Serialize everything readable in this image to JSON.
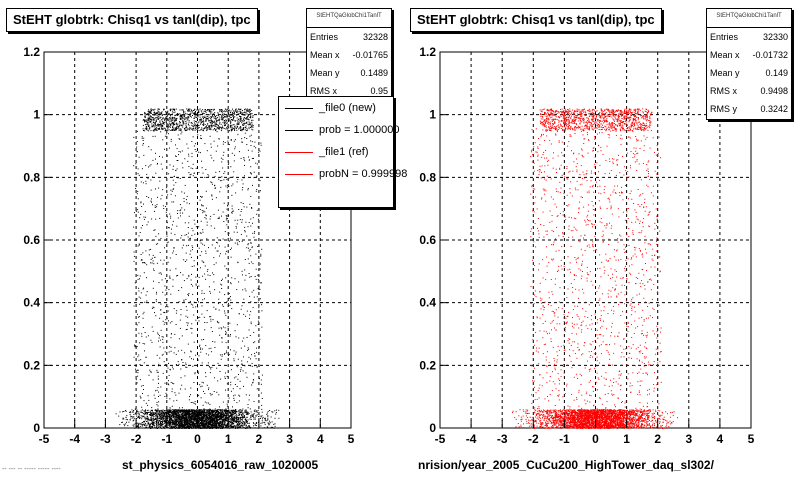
{
  "chart_data": [
    {
      "type": "scatter",
      "title": "StEHT globtrk: Chisq1 vs tanl(dip), tpc",
      "xlabel": "st_physics_6054016_raw_1020005",
      "ylabel": "",
      "xlim": [
        -5,
        5
      ],
      "ylim": [
        0,
        1.2
      ],
      "x_ticks": [
        "-5",
        "-4",
        "-3",
        "-2",
        "-1",
        "0",
        "1",
        "2",
        "3",
        "4",
        "5"
      ],
      "y_ticks": [
        "0",
        "0.2",
        "0.4",
        "0.6",
        "0.8",
        "1",
        "1.2"
      ],
      "grid": true,
      "point_color": "#000000",
      "stats": {
        "name": "StEHTQaGlobChi1TanlT",
        "rows": [
          {
            "label": "Entries",
            "value": "32328"
          },
          {
            "label": "Mean x",
            "value": "-0.01765"
          },
          {
            "label": "Mean y",
            "value": "0.1489"
          },
          {
            "label": "RMS x",
            "value": "0.95"
          }
        ]
      },
      "legend": {
        "placement": "top-right",
        "entries": [
          {
            "label": "_file0 (new)",
            "color": "#000000"
          },
          {
            "label": "prob = 1.000000",
            "color": "#000000"
          },
          {
            "label": "_file1 (ref)",
            "color": "#ff0000"
          },
          {
            "label": "probN = 0.999998",
            "color": "#ff0000"
          }
        ]
      },
      "distribution": {
        "peak_band_y": [
          0,
          0.06
        ],
        "upper_band_y": [
          0.95,
          1.02
        ],
        "x_range": [
          -2.7,
          2.7
        ],
        "mean_x": -0.01765,
        "rms_x": 0.95
      }
    },
    {
      "type": "scatter",
      "title": "StEHT globtrk: Chisq1 vs tanl(dip), tpc",
      "xlabel": "nrision/year_2005_CuCu200_HighTower_daq_sl302/",
      "ylabel": "",
      "xlim": [
        -5,
        5
      ],
      "ylim": [
        0,
        1.2
      ],
      "x_ticks": [
        "-5",
        "-4",
        "-3",
        "-2",
        "-1",
        "0",
        "1",
        "2",
        "3",
        "4",
        "5"
      ],
      "y_ticks": [
        "0",
        "0.2",
        "0.4",
        "0.6",
        "0.8",
        "1",
        "1.2"
      ],
      "grid": true,
      "point_color": "#ff0000",
      "stats": {
        "name": "StEHTQaGlobChi1TanlT",
        "rows": [
          {
            "label": "Entries",
            "value": "32330"
          },
          {
            "label": "Mean x",
            "value": "-0.01732"
          },
          {
            "label": "Mean y",
            "value": "0.149"
          },
          {
            "label": "RMS x",
            "value": "0.9498"
          },
          {
            "label": "RMS y",
            "value": "0.3242"
          }
        ]
      },
      "distribution": {
        "peak_band_y": [
          0,
          0.06
        ],
        "upper_band_y": [
          0.95,
          1.02
        ],
        "x_range": [
          -2.7,
          2.7
        ],
        "mean_x": -0.01732,
        "rms_x": 0.9498
      }
    }
  ],
  "footer": "-- --- -- ----- ----- ----"
}
